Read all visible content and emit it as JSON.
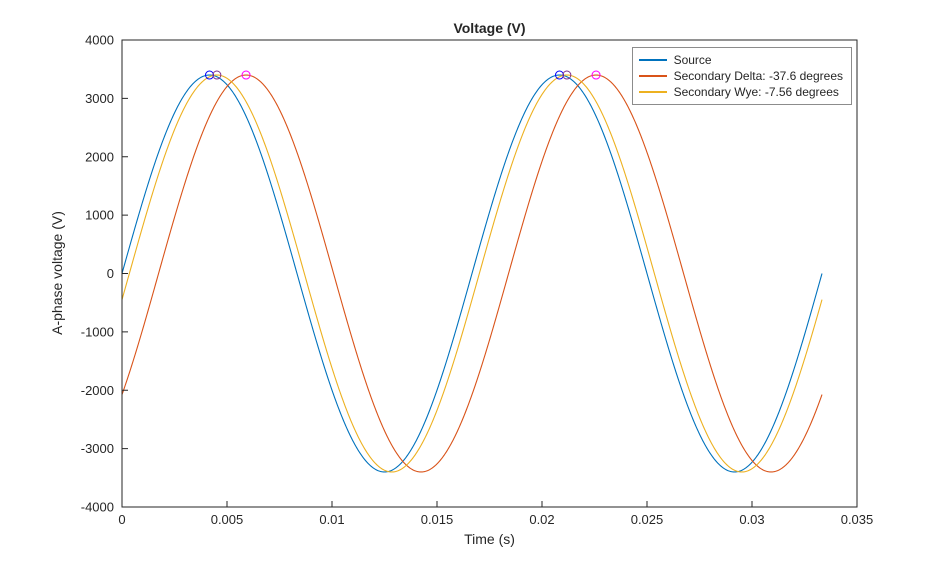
{
  "chart_data": {
    "type": "line",
    "title": "Voltage (V)",
    "xlabel": "Time (s)",
    "ylabel": "A-phase voltage (V)",
    "xlim": [
      0,
      0.035
    ],
    "ylim": [
      -4000,
      4000
    ],
    "xtick_values": [
      0,
      0.005,
      0.01,
      0.015,
      0.02,
      0.025,
      0.03,
      0.035
    ],
    "xtick_labels": [
      "0",
      "0.005",
      "0.01",
      "0.015",
      "0.02",
      "0.025",
      "0.03",
      "0.035"
    ],
    "ytick_values": [
      -4000,
      -3000,
      -2000,
      -1000,
      0,
      1000,
      2000,
      3000,
      4000
    ],
    "ytick_labels": [
      "-4000",
      "-3000",
      "-2000",
      "-1000",
      "0",
      "1000",
      "2000",
      "3000",
      "4000"
    ],
    "grid": false,
    "axis_color": "#262626",
    "background": "#ffffff",
    "signal": {
      "amplitude": 3400,
      "frequency_hz": 60,
      "t_start": 0,
      "t_end": 0.033333
    },
    "series": [
      {
        "name": "Source",
        "color": "#0072BD",
        "phase_deg": 0
      },
      {
        "name": "Secondary Delta: -37.6 degrees",
        "color": "#D95319",
        "phase_deg": -37.6
      },
      {
        "name": "Secondary Wye: -7.56 degrees",
        "color": "#EDB120",
        "phase_deg": -7.56
      }
    ],
    "peak_markers": [
      {
        "series": "Source",
        "color": "#0000FF",
        "points": [
          [
            0.0041667,
            3400
          ],
          [
            0.0208333,
            3400
          ]
        ]
      },
      {
        "series": "Secondary Wye: -7.56 degrees",
        "color": "#7E2F8E",
        "points": [
          [
            0.0045167,
            3400
          ],
          [
            0.0211833,
            3400
          ]
        ]
      },
      {
        "series": "Secondary Delta: -37.6 degrees",
        "color": "#FF00FF",
        "points": [
          [
            0.0059074,
            3400
          ],
          [
            0.0225741,
            3400
          ]
        ]
      }
    ],
    "legend": {
      "position": "top-right",
      "entries": [
        "Source",
        "Secondary Delta: -37.6 degrees",
        "Secondary Wye: -7.56 degrees"
      ]
    }
  }
}
